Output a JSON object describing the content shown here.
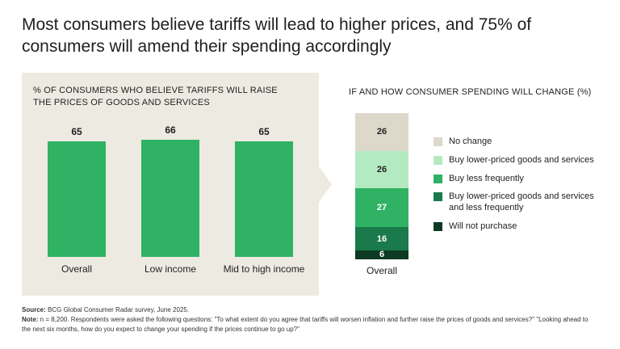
{
  "title": "Most consumers believe tariffs will lead to higher prices, and 75% of consumers will amend their spending accordingly",
  "chart_data": [
    {
      "type": "bar",
      "title": "% OF CONSUMERS WHO BELIEVE TARIFFS WILL RAISE THE PRICES OF GOODS AND SERVICES",
      "categories": [
        "Overall",
        "Low income",
        "Mid to high income"
      ],
      "values": [
        65,
        66,
        65
      ],
      "ylim": [
        0,
        100
      ],
      "bar_color": "#2fb264",
      "panel_bg": "#edeae2",
      "legend_position": "none",
      "grid": false
    },
    {
      "type": "bar",
      "stacked": true,
      "title": "IF AND HOW CONSUMER SPENDING WILL CHANGE (%)",
      "categories": [
        "Overall"
      ],
      "series": [
        {
          "name": "No change",
          "values": [
            26
          ],
          "color": "#ded8ca",
          "text_color": "#1f1f1f"
        },
        {
          "name": "Buy lower-priced goods and services",
          "values": [
            26
          ],
          "color": "#b3eac1",
          "text_color": "#1f1f1f"
        },
        {
          "name": "Buy less frequently",
          "values": [
            27
          ],
          "color": "#2fb264",
          "text_color": "#ffffff"
        },
        {
          "name": "Buy lower-priced goods and services and less frequently",
          "values": [
            16
          ],
          "color": "#1a7a4b",
          "text_color": "#ffffff"
        },
        {
          "name": "Will not purchase",
          "values": [
            6
          ],
          "color": "#0c3a23",
          "text_color": "#ffffff"
        }
      ],
      "ylim": [
        0,
        101
      ],
      "legend_position": "right",
      "grid": false
    }
  ],
  "footer": {
    "source_label": "Source:",
    "source_text": " BCG Global Consumer Radar survey, June 2025.",
    "note_label": "Note:",
    "note_text": " n = 8,200. Respondents were asked the following questions: \"To what extent do you agree that tariffs will worsen inflation and further raise the prices of goods and services?\" \"Looking ahead to the next six months, how do you expect to change your spending if the prices continue to go up?\""
  }
}
